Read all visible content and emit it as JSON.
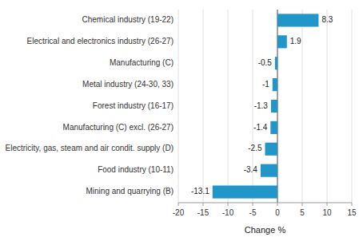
{
  "chart_data": {
    "type": "bar",
    "orientation": "horizontal",
    "categories": [
      "Chemical industry (19-22)",
      "Electrical and electronics industry (26-27)",
      "Manufacturing (C)",
      "Metal industry (24-30, 33)",
      "Forest industry (16-17)",
      "Manufacturing (C) excl. (26-27)",
      "Electricity, gas, steam and air condit. supply (D)",
      "Food industry (10-11)",
      "Mining and quarrying (B)"
    ],
    "values": [
      8.3,
      1.9,
      -0.5,
      -1.0,
      -1.3,
      -1.4,
      -2.5,
      -3.4,
      -13.1
    ],
    "color": "#2196c8",
    "xlim": [
      -20,
      15
    ],
    "xticks": [
      -20,
      -15,
      -10,
      -5,
      0,
      5,
      10,
      15
    ],
    "xlabel": "Change %",
    "grid": true,
    "data_labels": true
  }
}
